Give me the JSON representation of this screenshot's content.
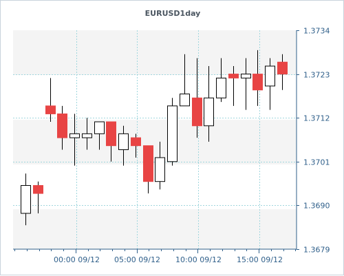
{
  "chart_data": {
    "type": "candlestick",
    "title": "EURUSD1day",
    "colors": {
      "up": "#ffffff",
      "down": "#e84444",
      "outline": "#000000",
      "grid": "#9fd6dd",
      "axis": "#2f5f8a",
      "band": "#f4f4f4"
    },
    "ylim": [
      1.3679,
      1.3734
    ],
    "yticks": [
      "1.3734",
      "1.3723",
      "1.3712",
      "1.3701",
      "1.3690",
      "1.3679"
    ],
    "xticks": [
      "00:00 09/12",
      "05:00 09/12",
      "10:00 09/12",
      "15:00 09/12"
    ],
    "grid": true,
    "candles": [
      {
        "open": 1.3688,
        "high": 1.3698,
        "low": 1.3685,
        "close": 1.3695
      },
      {
        "open": 1.3695,
        "high": 1.3696,
        "low": 1.3688,
        "close": 1.3693
      },
      {
        "open": 1.3715,
        "high": 1.3722,
        "low": 1.3711,
        "close": 1.3713
      },
      {
        "open": 1.3713,
        "high": 1.3715,
        "low": 1.3704,
        "close": 1.3707
      },
      {
        "open": 1.3707,
        "high": 1.3713,
        "low": 1.37,
        "close": 1.3708
      },
      {
        "open": 1.3707,
        "high": 1.3712,
        "low": 1.3704,
        "close": 1.3708
      },
      {
        "open": 1.3708,
        "high": 1.3711,
        "low": 1.3704,
        "close": 1.3711
      },
      {
        "open": 1.3711,
        "high": 1.3711,
        "low": 1.3701,
        "close": 1.3705
      },
      {
        "open": 1.3704,
        "high": 1.371,
        "low": 1.37,
        "close": 1.3708
      },
      {
        "open": 1.3707,
        "high": 1.3708,
        "low": 1.3702,
        "close": 1.3705
      },
      {
        "open": 1.3705,
        "high": 1.3705,
        "low": 1.3693,
        "close": 1.3696
      },
      {
        "open": 1.3696,
        "high": 1.3706,
        "low": 1.3694,
        "close": 1.3702
      },
      {
        "open": 1.3701,
        "high": 1.3717,
        "low": 1.37,
        "close": 1.3715
      },
      {
        "open": 1.3715,
        "high": 1.3728,
        "low": 1.3715,
        "close": 1.3718
      },
      {
        "open": 1.3717,
        "high": 1.3727,
        "low": 1.3707,
        "close": 1.371
      },
      {
        "open": 1.371,
        "high": 1.3725,
        "low": 1.3706,
        "close": 1.3717
      },
      {
        "open": 1.3717,
        "high": 1.3727,
        "low": 1.3716,
        "close": 1.3722
      },
      {
        "open": 1.3723,
        "high": 1.3725,
        "low": 1.3715,
        "close": 1.3722
      },
      {
        "open": 1.3722,
        "high": 1.3727,
        "low": 1.3714,
        "close": 1.3723
      },
      {
        "open": 1.3723,
        "high": 1.3729,
        "low": 1.3715,
        "close": 1.3719
      },
      {
        "open": 1.372,
        "high": 1.3727,
        "low": 1.3714,
        "close": 1.3725
      },
      {
        "open": 1.3726,
        "high": 1.3728,
        "low": 1.3719,
        "close": 1.3723
      }
    ]
  }
}
